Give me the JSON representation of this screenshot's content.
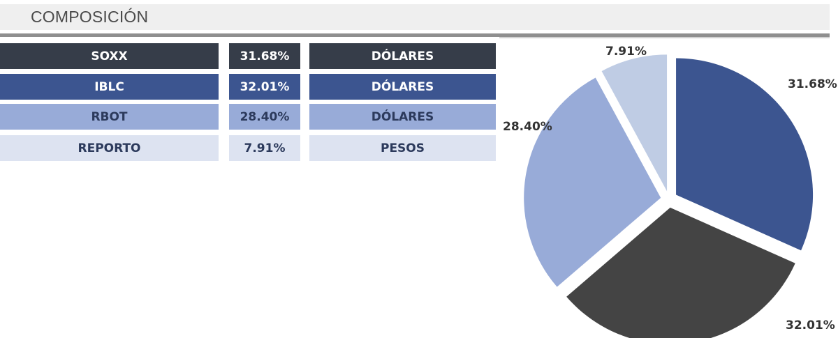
{
  "header": {
    "title": "COMPOSICIÓN"
  },
  "colors": {
    "soxx": "#363d49",
    "iblc": "#3c5590",
    "rbot": "#98abd8",
    "reporto": "#dde3f1",
    "pie_iblc": "#444444",
    "pie_reporto": "#bfcce4"
  },
  "table": {
    "rows": [
      {
        "name": "SOXX",
        "pct": "31.68%",
        "currency": "DÓLARES"
      },
      {
        "name": "IBLC",
        "pct": "32.01%",
        "currency": "DÓLARES"
      },
      {
        "name": "RBOT",
        "pct": "28.40%",
        "currency": "DÓLARES"
      },
      {
        "name": "REPORTO",
        "pct": "7.91%",
        "currency": "PESOS"
      }
    ]
  },
  "chart_data": {
    "type": "pie",
    "slices": [
      {
        "label": "31.68%",
        "value": 31.68,
        "color": "#3c5590"
      },
      {
        "label": "32.01%",
        "value": 32.01,
        "color": "#444444"
      },
      {
        "label": "28.40%",
        "value": 28.4,
        "color": "#98abd8"
      },
      {
        "label": "7.91%",
        "value": 7.91,
        "color": "#bfcce4"
      }
    ],
    "title": ""
  }
}
